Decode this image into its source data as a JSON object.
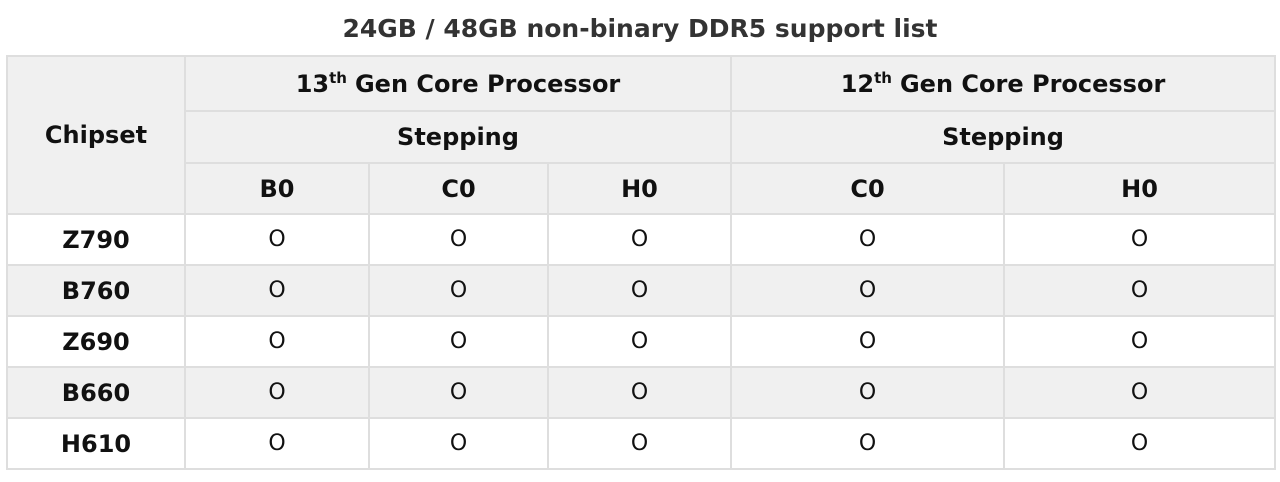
{
  "title": "24GB / 48GB non-binary DDR5 support list",
  "table": {
    "corner": "Chipset",
    "groups": [
      {
        "number": "13",
        "suffix": "th",
        "label": "Gen Core Processor",
        "subheader": "Stepping",
        "steppings": [
          "B0",
          "C0",
          "H0"
        ]
      },
      {
        "number": "12",
        "suffix": "th",
        "label": "Gen Core Processor",
        "subheader": "Stepping",
        "steppings": [
          "C0",
          "H0"
        ]
      }
    ],
    "rows": [
      {
        "chipset": "Z790",
        "cells": [
          "O",
          "O",
          "O",
          "O",
          "O"
        ]
      },
      {
        "chipset": "B760",
        "cells": [
          "O",
          "O",
          "O",
          "O",
          "O"
        ]
      },
      {
        "chipset": "Z690",
        "cells": [
          "O",
          "O",
          "O",
          "O",
          "O"
        ]
      },
      {
        "chipset": "B660",
        "cells": [
          "O",
          "O",
          "O",
          "O",
          "O"
        ]
      },
      {
        "chipset": "H610",
        "cells": [
          "O",
          "O",
          "O",
          "O",
          "O"
        ]
      }
    ]
  }
}
